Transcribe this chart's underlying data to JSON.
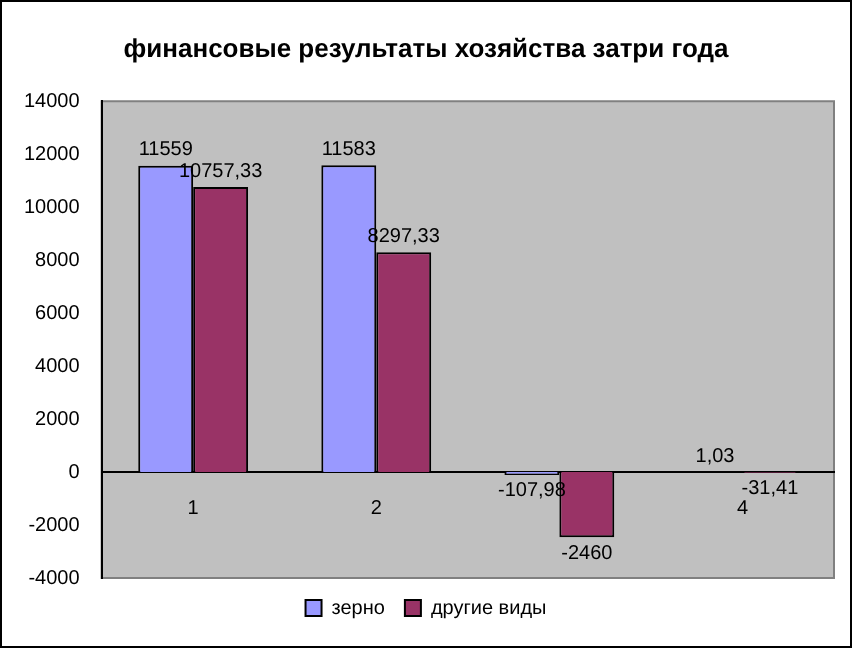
{
  "chart_data": {
    "type": "bar",
    "title": "финансовые результаты хозяйства затри года",
    "categories": [
      "1",
      "2",
      null,
      "4"
    ],
    "series": [
      {
        "name": "зерно",
        "color": "#9999ff",
        "values": [
          11559,
          11583,
          -107.98,
          1.03
        ],
        "value_labels": [
          "11559",
          "11583",
          "-107,98",
          "1,03"
        ]
      },
      {
        "name": "другие виды",
        "color": "#993366",
        "values": [
          10757.33,
          8297.33,
          -2460,
          -31.41
        ],
        "value_labels": [
          "10757,33",
          "8297,33",
          "-2460",
          "-31,41"
        ]
      }
    ],
    "ylim": [
      -4000,
      14000
    ],
    "yticks": [
      -4000,
      -2000,
      0,
      2000,
      4000,
      6000,
      8000,
      10000,
      12000,
      14000
    ],
    "grid": false,
    "legend": "bottom"
  }
}
